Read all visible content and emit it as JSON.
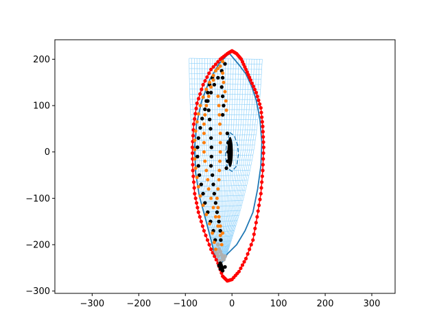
{
  "chart_data": {
    "type": "scatter",
    "title": "",
    "xlabel": "",
    "ylabel": "",
    "xlim": [
      -380,
      350
    ],
    "ylim": [
      -305,
      242
    ],
    "x_ticks": [
      -300,
      -200,
      -100,
      0,
      100,
      200,
      300
    ],
    "y_ticks": [
      -300,
      -200,
      -100,
      0,
      100,
      200
    ],
    "x_tick_labels": [
      "−300",
      "−200",
      "−100",
      "0",
      "100",
      "200",
      "300"
    ],
    "y_tick_labels": [
      "−300",
      "−200",
      "−100",
      "0",
      "100",
      "200"
    ],
    "grid": false,
    "legend": "none",
    "colors": {
      "outline": "#ff0000",
      "contour": "#1f77b4",
      "mesh": "#87cefa",
      "orange_points": "#ff7f0e",
      "black_points": "#000000",
      "gray_points": "#b0b0b0"
    },
    "series": [
      {
        "kind": "red-outline",
        "points": [
          [
            0,
            218
          ],
          [
            10,
            212
          ],
          [
            20,
            200
          ],
          [
            30,
            178
          ],
          [
            40,
            155
          ],
          [
            52,
            128
          ],
          [
            62,
            95
          ],
          [
            66,
            55
          ],
          [
            68,
            10
          ],
          [
            66,
            -40
          ],
          [
            62,
            -90
          ],
          [
            54,
            -140
          ],
          [
            45,
            -190
          ],
          [
            30,
            -230
          ],
          [
            15,
            -258
          ],
          [
            0,
            -275
          ],
          [
            -10,
            -278
          ],
          [
            -20,
            -268
          ],
          [
            -30,
            -240
          ],
          [
            -45,
            -210
          ],
          [
            -60,
            -170
          ],
          [
            -72,
            -130
          ],
          [
            -80,
            -90
          ],
          [
            -84,
            -40
          ],
          [
            -85,
            10
          ],
          [
            -82,
            60
          ],
          [
            -75,
            105
          ],
          [
            -62,
            145
          ],
          [
            -45,
            178
          ],
          [
            -25,
            200
          ],
          [
            -10,
            212
          ],
          [
            0,
            218
          ]
        ]
      },
      {
        "kind": "blue-contour",
        "points": [
          [
            -5,
            212
          ],
          [
            5,
            200
          ],
          [
            15,
            188
          ],
          [
            30,
            168
          ],
          [
            42,
            142
          ],
          [
            52,
            112
          ],
          [
            60,
            70
          ],
          [
            64,
            20
          ],
          [
            62,
            -30
          ],
          [
            55,
            -80
          ],
          [
            45,
            -130
          ],
          [
            28,
            -170
          ],
          [
            10,
            -200
          ],
          [
            -10,
            -220
          ],
          [
            -25,
            -245
          ],
          [
            -35,
            -230
          ],
          [
            -45,
            -190
          ],
          [
            -58,
            -140
          ],
          [
            -70,
            -95
          ],
          [
            -78,
            -45
          ],
          [
            -80,
            10
          ],
          [
            -76,
            60
          ],
          [
            -65,
            110
          ],
          [
            -48,
            155
          ],
          [
            -28,
            190
          ],
          [
            -12,
            207
          ],
          [
            -5,
            212
          ]
        ]
      },
      {
        "kind": "inner-ellipse",
        "points": [
          [
            -5,
            42
          ],
          [
            5,
            35
          ],
          [
            12,
            15
          ],
          [
            14,
            -5
          ],
          [
            10,
            -30
          ],
          [
            0,
            -42
          ],
          [
            -10,
            -35
          ],
          [
            -14,
            -10
          ],
          [
            -12,
            15
          ],
          [
            -5,
            42
          ]
        ]
      },
      {
        "kind": "orange",
        "points": [
          [
            -20,
            195
          ],
          [
            -30,
            180
          ],
          [
            -40,
            165
          ],
          [
            -48,
            150
          ],
          [
            -55,
            135
          ],
          [
            -62,
            118
          ],
          [
            -68,
            100
          ],
          [
            -72,
            82
          ],
          [
            -75,
            65
          ],
          [
            -78,
            45
          ],
          [
            -80,
            25
          ],
          [
            -80,
            5
          ],
          [
            -80,
            -15
          ],
          [
            -78,
            -35
          ],
          [
            -75,
            -55
          ],
          [
            -72,
            -75
          ],
          [
            -68,
            -95
          ],
          [
            -62,
            -115
          ],
          [
            -55,
            -135
          ],
          [
            -48,
            -155
          ],
          [
            -42,
            -175
          ],
          [
            -38,
            -195
          ],
          [
            -35,
            -210
          ],
          [
            -25,
            185
          ],
          [
            -20,
            170
          ],
          [
            -18,
            150
          ],
          [
            -15,
            130
          ],
          [
            -13,
            110
          ],
          [
            -12,
            90
          ],
          [
            -35,
            175
          ],
          [
            -40,
            155
          ],
          [
            -45,
            140
          ],
          [
            -50,
            120
          ],
          [
            -55,
            100
          ],
          [
            -58,
            80
          ],
          [
            -60,
            60
          ],
          [
            -60,
            40
          ],
          [
            -60,
            20
          ],
          [
            -60,
            0
          ],
          [
            -58,
            -20
          ],
          [
            -55,
            -40
          ],
          [
            -52,
            -60
          ],
          [
            -50,
            -80
          ],
          [
            -45,
            -100
          ],
          [
            -40,
            -120
          ],
          [
            -35,
            -140
          ],
          [
            -30,
            -160
          ],
          [
            -25,
            -180
          ],
          [
            -22,
            -200
          ],
          [
            -30,
            120
          ],
          [
            -28,
            100
          ],
          [
            -27,
            80
          ],
          [
            -26,
            60
          ],
          [
            -25,
            40
          ],
          [
            -25,
            20
          ],
          [
            -25,
            0
          ],
          [
            -26,
            -20
          ],
          [
            -27,
            -40
          ],
          [
            -28,
            -60
          ],
          [
            -30,
            -80
          ],
          [
            -32,
            -100
          ],
          [
            -30,
            -120
          ],
          [
            -28,
            -140
          ],
          [
            -25,
            -160
          ],
          [
            -20,
            -175
          ]
        ]
      },
      {
        "kind": "black",
        "points": [
          [
            -15,
            190
          ],
          [
            -22,
            175
          ],
          [
            -30,
            160
          ],
          [
            -38,
            145
          ],
          [
            -45,
            128
          ],
          [
            -52,
            110
          ],
          [
            -58,
            92
          ],
          [
            -64,
            72
          ],
          [
            -68,
            52
          ],
          [
            -72,
            30
          ],
          [
            -74,
            10
          ],
          [
            -74,
            -10
          ],
          [
            -72,
            -30
          ],
          [
            -70,
            -50
          ],
          [
            -66,
            -70
          ],
          [
            -62,
            -90
          ],
          [
            -58,
            -110
          ],
          [
            -52,
            -130
          ],
          [
            -46,
            -150
          ],
          [
            -40,
            -170
          ],
          [
            -36,
            -190
          ],
          [
            -20,
            160
          ],
          [
            -22,
            140
          ],
          [
            -20,
            120
          ],
          [
            -18,
            100
          ],
          [
            -20,
            80
          ],
          [
            -42,
            160
          ],
          [
            -48,
            145
          ],
          [
            -52,
            128
          ],
          [
            -55,
            110
          ],
          [
            -50,
            90
          ],
          [
            -48,
            70
          ],
          [
            -46,
            50
          ],
          [
            -45,
            30
          ],
          [
            -44,
            10
          ],
          [
            -44,
            -10
          ],
          [
            -45,
            -30
          ],
          [
            -42,
            -50
          ],
          [
            -40,
            -70
          ],
          [
            -38,
            -90
          ],
          [
            -35,
            -110
          ],
          [
            -32,
            -130
          ],
          [
            -28,
            -150
          ],
          [
            -25,
            -170
          ],
          [
            -24,
            -190
          ],
          [
            -10,
            40
          ],
          [
            -8,
            20
          ],
          [
            -8,
            0
          ],
          [
            -9,
            -20
          ],
          [
            -12,
            -35
          ],
          [
            -25,
            -240
          ],
          [
            -23,
            -245
          ],
          [
            -20,
            -250
          ],
          [
            -25,
            -252
          ],
          [
            -20,
            -256
          ],
          [
            -15,
            -248
          ],
          [
            -28,
            -245
          ]
        ]
      },
      {
        "kind": "gray",
        "points": [
          [
            -30,
            -200
          ],
          [
            -28,
            -210
          ],
          [
            -25,
            -215
          ],
          [
            -22,
            -222
          ],
          [
            -20,
            -228
          ],
          [
            -18,
            -232
          ],
          [
            -30,
            -225
          ],
          [
            -26,
            -235
          ],
          [
            -24,
            -240
          ],
          [
            -35,
            -215
          ],
          [
            -32,
            -220
          ],
          [
            -15,
            -225
          ]
        ]
      },
      {
        "kind": "mesh",
        "top_left": [
          -92,
          202
        ],
        "top_right": [
          65,
          200
        ],
        "bottom_left": [
          -30,
          -240
        ],
        "bottom_right": [
          -15,
          -235
        ],
        "rows": 40,
        "cols": 28
      }
    ]
  }
}
